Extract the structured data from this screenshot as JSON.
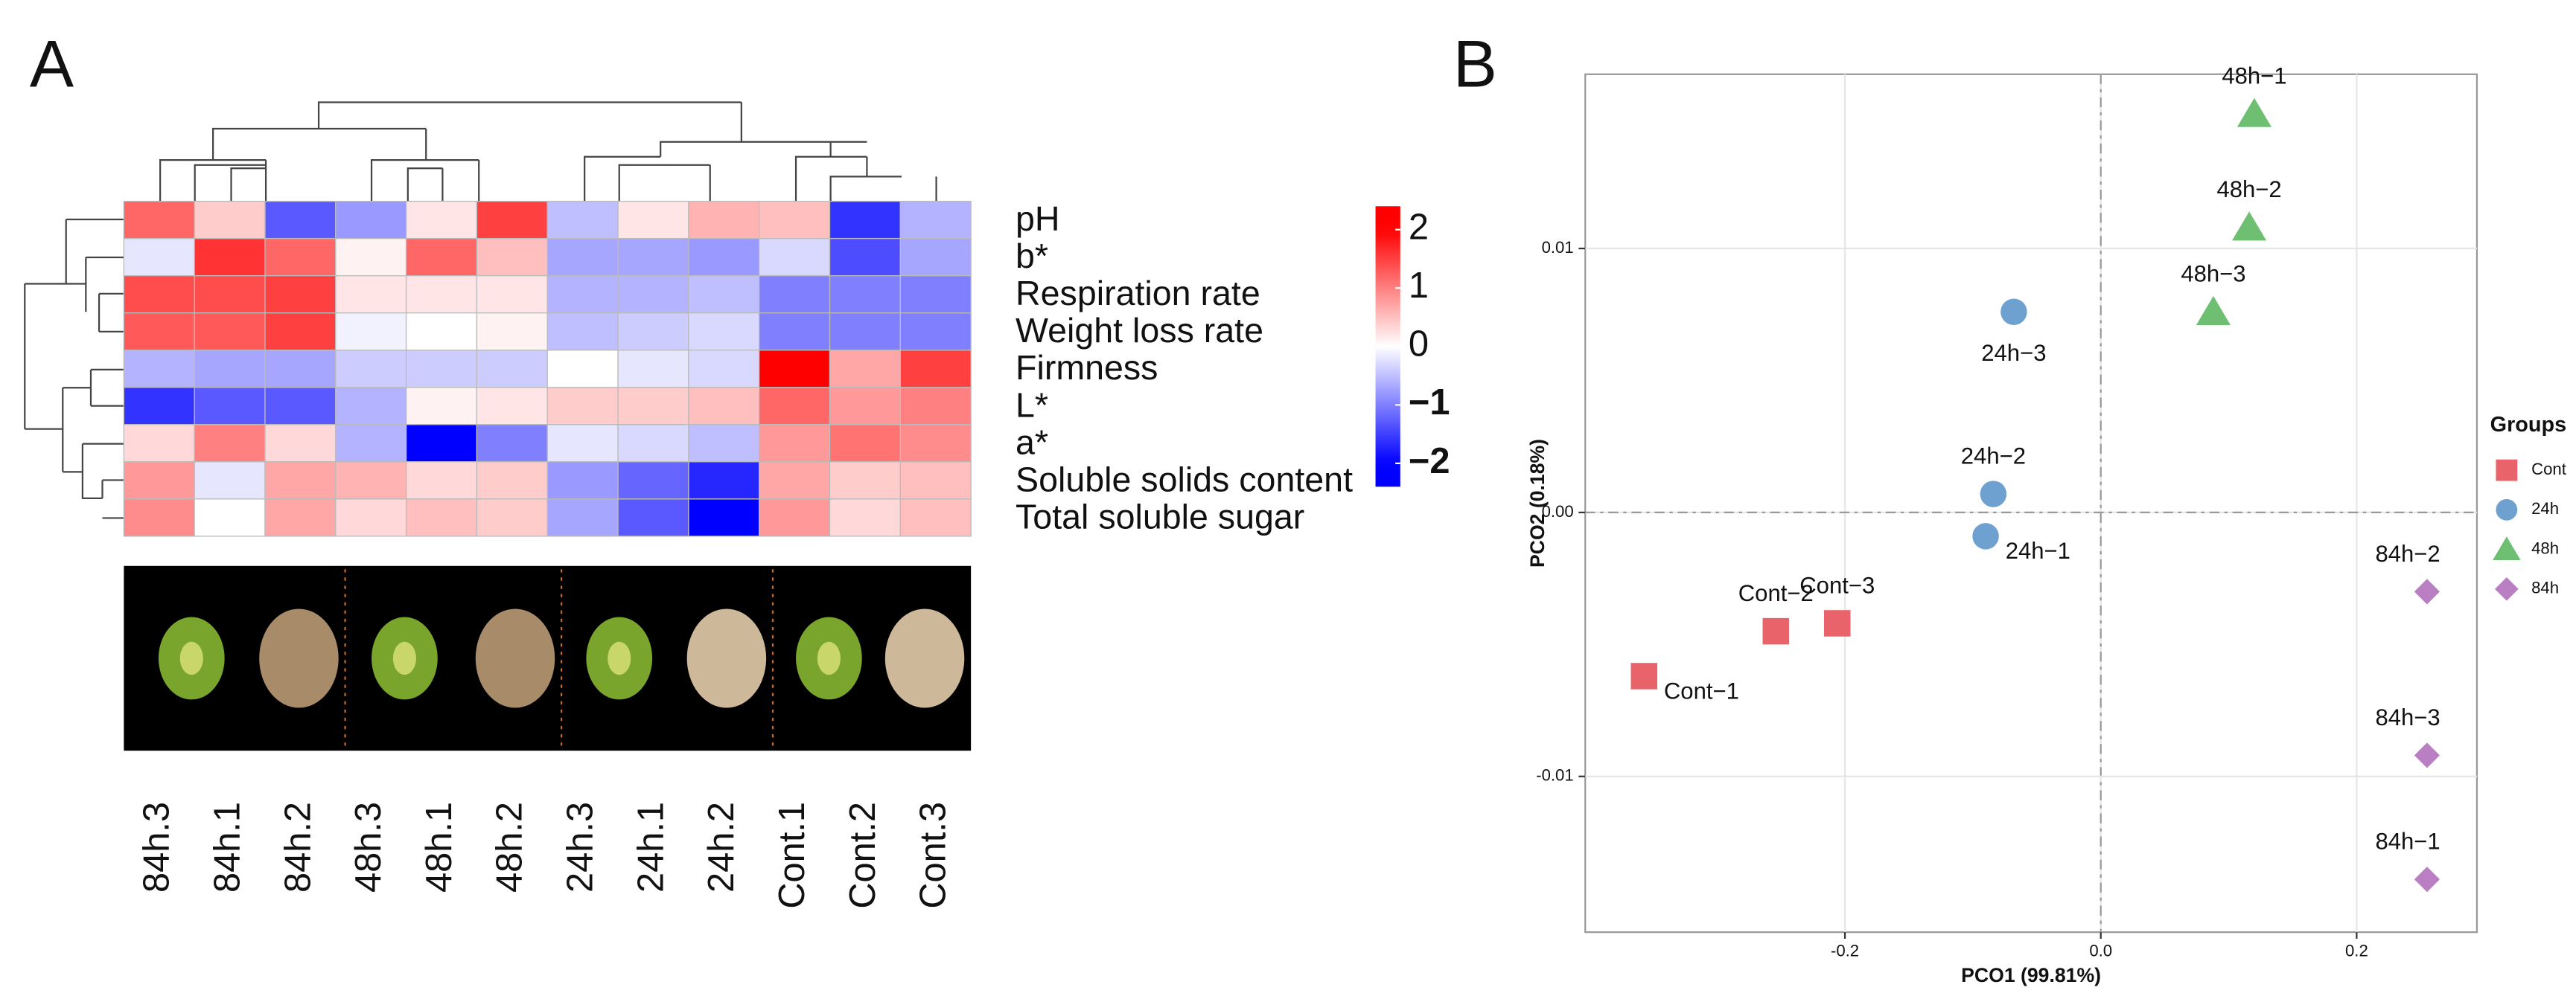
{
  "chart_data": [
    {
      "type": "heatmap",
      "panel": "A",
      "categories": [
        "84h.3",
        "84h.1",
        "84h.2",
        "48h.3",
        "48h.1",
        "48h.2",
        "24h.3",
        "24h.1",
        "24h.2",
        "Cont.1",
        "Cont.2",
        "Cont.3"
      ],
      "rows": [
        "pH",
        "b*",
        "Respiration rate",
        "Weight loss rate",
        "Firmness",
        "L*",
        "a*",
        "Soluble solids content",
        "Total soluble sugar"
      ],
      "values": [
        [
          1.2,
          0.4,
          -1.3,
          -0.8,
          0.2,
          1.5,
          -0.5,
          0.2,
          0.6,
          0.5,
          -1.6,
          -0.6
        ],
        [
          -0.2,
          1.6,
          1.2,
          0.1,
          1.2,
          0.5,
          -0.7,
          -0.7,
          -0.8,
          -0.3,
          -1.4,
          -0.7
        ],
        [
          1.4,
          1.4,
          1.5,
          0.2,
          0.2,
          0.2,
          -0.6,
          -0.6,
          -0.5,
          -1.0,
          -1.0,
          -1.0
        ],
        [
          1.3,
          1.3,
          1.5,
          -0.1,
          0,
          0.1,
          -0.5,
          -0.4,
          -0.3,
          -1.0,
          -1.0,
          -1.0
        ],
        [
          -0.6,
          -0.7,
          -0.7,
          -0.4,
          -0.4,
          -0.4,
          0,
          -0.2,
          -0.3,
          2.2,
          0.7,
          1.5
        ],
        [
          -1.6,
          -1.3,
          -1.3,
          -0.6,
          0.1,
          0.2,
          0.4,
          0.4,
          0.5,
          1.2,
          0.8,
          1.0
        ],
        [
          0.3,
          1.0,
          0.3,
          -0.6,
          -2.0,
          -1.0,
          -0.2,
          -0.3,
          -0.5,
          0.8,
          1.1,
          0.9
        ],
        [
          0.8,
          -0.2,
          0.7,
          0.6,
          0.3,
          0.4,
          -0.8,
          -1.2,
          -1.7,
          0.7,
          0.4,
          0.5
        ],
        [
          0.9,
          0.0,
          0.7,
          0.3,
          0.5,
          0.4,
          -0.7,
          -1.3,
          -2.0,
          0.8,
          0.3,
          0.5
        ]
      ],
      "colors": [
        "#0000ff",
        "#ffffff",
        "#ff0000"
      ],
      "clim": [
        -2,
        2
      ],
      "colorbar_lim": [
        -2.4,
        2.4
      ],
      "colorbar_ticks": [
        2,
        1,
        0,
        {
          "value": -1,
          "label": "−1"
        },
        {
          "value": -2,
          "label": "−2"
        }
      ]
    },
    {
      "type": "scatter",
      "panel": "B",
      "xlabel": "PCO1 (99.81%)",
      "ylabel": "PCO2 (0.18%)",
      "xlim": [
        -0.403,
        0.294
      ],
      "ylim": [
        -0.0159,
        0.0166
      ],
      "xticks": [
        -0.2,
        {
          "value": 0,
          "label": "0.0"
        },
        0.2
      ],
      "yticks": [
        -0.01,
        {
          "value": 0,
          "label": "0.00"
        },
        0.01
      ],
      "grid": true,
      "legend_title": "Groups",
      "legend": "right",
      "series": [
        {
          "name": "Cont",
          "color": "#e8636a",
          "marker": "square",
          "x": [
            -0.357,
            -0.254,
            -0.206
          ],
          "values": [
            -0.0062,
            -0.0045,
            -0.0042
          ],
          "labels": [
            "Cont−1",
            "Cont−2",
            "Cont−3"
          ]
        },
        {
          "name": "24h",
          "color": "#6fa1d0",
          "marker": "circle",
          "x": [
            -0.09,
            -0.084,
            -0.068
          ],
          "values": [
            -0.0009,
            0.0007,
            0.0076
          ],
          "labels": [
            "24h−1",
            "24h−2",
            "24h−3"
          ]
        },
        {
          "name": "48h",
          "color": "#6fbf73",
          "marker": "triangle",
          "x": [
            0.12,
            0.116,
            0.088
          ],
          "values": [
            0.0151,
            0.0108,
            0.0076
          ],
          "labels": [
            "48h−1",
            "48h−2",
            "48h−3"
          ]
        },
        {
          "name": "84h",
          "color": "#b97fc2",
          "marker": "diamond",
          "x": [
            0.255,
            0.255,
            0.255
          ],
          "values": [
            -0.0139,
            -0.003,
            -0.0092
          ],
          "labels": [
            "84h−1",
            "84h−2",
            "84h−3"
          ]
        }
      ]
    }
  ]
}
